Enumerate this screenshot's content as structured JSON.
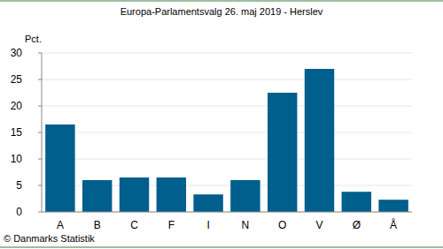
{
  "chart_data": {
    "type": "bar",
    "title": "Europa-Parlamentsvalg 26. maj 2019 - Herslev",
    "y_label": "Pct.",
    "source": "© Danmarks Statistik",
    "categories": [
      "A",
      "B",
      "C",
      "F",
      "I",
      "N",
      "O",
      "V",
      "Ø",
      "Å"
    ],
    "values": [
      16.5,
      6.0,
      6.5,
      6.5,
      3.3,
      6.0,
      22.5,
      27.0,
      3.8,
      2.3
    ],
    "color": "#005f8c",
    "ylim": [
      0,
      30
    ],
    "yticks": [
      0,
      5,
      10,
      15,
      20,
      25,
      30
    ],
    "grid": true
  }
}
